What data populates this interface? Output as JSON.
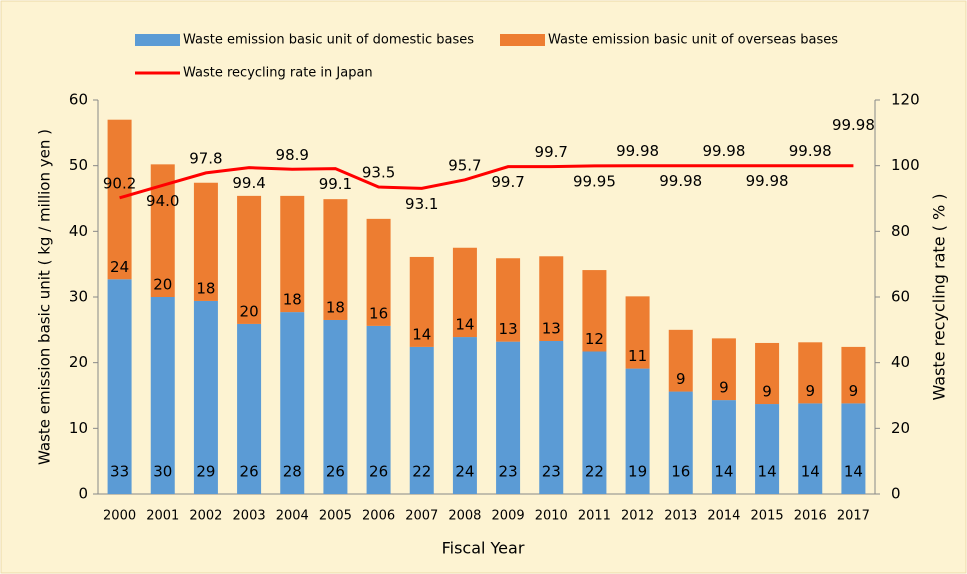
{
  "chart_data": {
    "type": "bar",
    "stacked": true,
    "categories": [
      "2000",
      "2001",
      "2002",
      "2003",
      "2004",
      "2005",
      "2006",
      "2007",
      "2008",
      "2009",
      "2010",
      "2011",
      "2012",
      "2013",
      "2014",
      "2015",
      "2016",
      "2017"
    ],
    "x_label": "Fiscal Year",
    "y_label": "Waste emission basic unit ( kg / million yen )",
    "y2_label": "Waste recycling rate ( % )",
    "ylim": [
      0,
      60
    ],
    "yticks": [
      0,
      10,
      20,
      30,
      40,
      50,
      60
    ],
    "y2lim": [
      0,
      120
    ],
    "y2ticks": [
      0,
      20,
      40,
      60,
      80,
      100,
      120
    ],
    "series": [
      {
        "name": "Waste emission basic unit of domestic bases",
        "color": "#5b9bd5",
        "values": [
          32.7,
          30.0,
          29.4,
          25.9,
          27.7,
          26.5,
          25.6,
          22.4,
          23.9,
          23.2,
          23.3,
          21.7,
          19.1,
          15.6,
          14.3,
          13.7,
          13.8,
          13.8
        ],
        "value_labels": [
          "33",
          "30",
          "29",
          "26",
          "28",
          "26",
          "26",
          "22",
          "24",
          "23",
          "23",
          "22",
          "19",
          "16",
          "14",
          "14",
          "14",
          "14"
        ]
      },
      {
        "name": "Waste emission basic unit of overseas bases",
        "color": "#ed7d31",
        "values": [
          24.3,
          20.2,
          18.0,
          19.5,
          17.7,
          18.4,
          16.3,
          13.7,
          13.6,
          12.7,
          12.9,
          12.4,
          11.0,
          9.4,
          9.4,
          9.3,
          9.3,
          8.6
        ],
        "value_labels": [
          "24",
          "20",
          "18",
          "20",
          "18",
          "18",
          "16",
          "14",
          "14",
          "13",
          "13",
          "12",
          "11",
          "9",
          "9",
          "9",
          "9",
          "9"
        ]
      },
      {
        "name": "Waste recycling rate in Japan",
        "color": "#ff0000",
        "type": "line",
        "axis": "y2",
        "values": [
          90.2,
          94.0,
          97.8,
          99.4,
          98.9,
          99.1,
          93.5,
          93.1,
          95.7,
          99.7,
          99.7,
          99.95,
          99.98,
          99.98,
          99.98,
          99.98,
          99.98,
          99.98
        ],
        "value_labels": [
          "90.2",
          "94.0",
          "97.8",
          "99.4",
          "98.9",
          "99.1",
          "93.5",
          "93.1",
          "95.7",
          "99.7",
          "99.7",
          "99.95",
          "99.98",
          "99.98",
          "99.98",
          "99.98",
          "99.98",
          "99.98"
        ]
      }
    ]
  }
}
